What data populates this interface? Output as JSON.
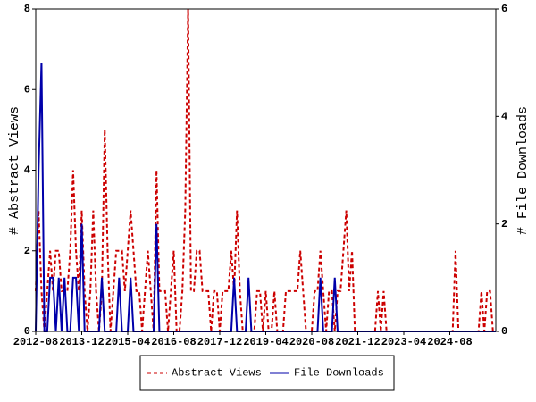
{
  "chart_data": {
    "type": "line",
    "x": [
      "2012-08",
      "2012-09",
      "2012-10",
      "2012-11",
      "2012-12",
      "2013-01",
      "2013-02",
      "2013-03",
      "2013-04",
      "2013-05",
      "2013-06",
      "2013-07",
      "2013-08",
      "2013-09",
      "2013-10",
      "2013-11",
      "2013-12",
      "2014-01",
      "2014-02",
      "2014-03",
      "2014-04",
      "2014-05",
      "2014-06",
      "2014-07",
      "2014-08",
      "2014-09",
      "2014-10",
      "2014-11",
      "2014-12",
      "2015-01",
      "2015-02",
      "2015-03",
      "2015-04",
      "2015-05",
      "2015-06",
      "2015-07",
      "2015-08",
      "2015-09",
      "2015-10",
      "2015-11",
      "2015-12",
      "2016-01",
      "2016-02",
      "2016-03",
      "2016-04",
      "2016-05",
      "2016-06",
      "2016-07",
      "2016-08",
      "2016-09",
      "2016-10",
      "2016-11",
      "2016-12",
      "2017-01",
      "2017-02",
      "2017-03",
      "2017-04",
      "2017-05",
      "2017-06",
      "2017-07",
      "2017-08",
      "2017-09",
      "2017-10",
      "2017-11",
      "2017-12",
      "2018-01",
      "2018-02",
      "2018-03",
      "2018-04",
      "2018-05",
      "2018-06",
      "2018-07",
      "2018-08",
      "2018-09",
      "2018-10",
      "2018-11",
      "2018-12",
      "2019-01",
      "2019-02",
      "2019-03",
      "2019-04",
      "2019-05",
      "2019-06",
      "2019-07",
      "2019-08",
      "2019-09",
      "2019-10",
      "2019-11",
      "2019-12",
      "2020-01",
      "2020-02",
      "2020-03",
      "2020-04",
      "2020-05",
      "2020-06",
      "2020-07",
      "2020-08",
      "2020-09",
      "2020-10",
      "2020-11",
      "2020-12",
      "2021-01",
      "2021-02",
      "2021-03",
      "2021-04",
      "2021-05",
      "2021-06",
      "2021-07",
      "2021-08",
      "2021-09",
      "2021-10",
      "2021-11",
      "2021-12",
      "2022-01",
      "2022-02",
      "2022-03",
      "2022-04",
      "2022-05",
      "2022-06",
      "2022-07",
      "2022-08",
      "2022-09",
      "2022-10",
      "2022-11",
      "2022-12",
      "2023-01",
      "2023-02",
      "2023-03",
      "2023-04",
      "2023-05",
      "2023-06",
      "2023-07",
      "2023-08",
      "2023-09",
      "2023-10",
      "2023-11",
      "2023-12",
      "2024-01",
      "2024-02",
      "2024-03",
      "2024-04",
      "2024-05",
      "2024-06",
      "2024-07",
      "2024-08",
      "2024-09",
      "2024-10",
      "2024-11",
      "2024-12",
      "2025-01",
      "2025-02",
      "2025-03",
      "2025-04",
      "2025-05",
      "2025-06",
      "2025-07",
      "2025-08",
      "2025-09",
      "2025-10",
      "2025-11",
      "2025-12"
    ],
    "xticks": [
      "2012-08",
      "2013-12",
      "2015-04",
      "2016-08",
      "2017-12",
      "2019-04",
      "2020-08",
      "2021-12",
      "2023-04",
      "2024-08"
    ],
    "y_label": "# Abstract Views",
    "y2_label": "# File Downloads",
    "ylim": [
      0,
      8
    ],
    "yticks": [
      0,
      2,
      4,
      6,
      8
    ],
    "y2lim": [
      0,
      6
    ],
    "y2ticks": [
      0,
      2,
      4,
      6
    ],
    "legend": "bottom",
    "series": [
      {
        "name": "Abstract Views",
        "color": "#cc0000",
        "dash": true,
        "axis": "y",
        "values": [
          1,
          3,
          1,
          0,
          1,
          2,
          1,
          2,
          2,
          1,
          1,
          1,
          2,
          4,
          2,
          1,
          3,
          1,
          0,
          1,
          3,
          1,
          0,
          1,
          5,
          2,
          0,
          1,
          2,
          2,
          2,
          1,
          2,
          3,
          2,
          1,
          1,
          0,
          1,
          2,
          1,
          0,
          4,
          1,
          1,
          1,
          0,
          1,
          2,
          0,
          0,
          1,
          3,
          8,
          1,
          1,
          2,
          2,
          1,
          1,
          1,
          0,
          1,
          1,
          0,
          1,
          1,
          1,
          2,
          1,
          3,
          1,
          0,
          0,
          0,
          0,
          0,
          1,
          1,
          0,
          1,
          0,
          0,
          1,
          0,
          0,
          0,
          1,
          1,
          1,
          1,
          1,
          2,
          1,
          0,
          0,
          0,
          1,
          1,
          2,
          1,
          0,
          1,
          1,
          0,
          1,
          1,
          2,
          3,
          1,
          2,
          0,
          0,
          0,
          0,
          0,
          0,
          0,
          0,
          1,
          0,
          1,
          0,
          0,
          0,
          0,
          0,
          0,
          0,
          0,
          0,
          0,
          0,
          0,
          0,
          0,
          0,
          0,
          0,
          0,
          0,
          0,
          0,
          0,
          0,
          0,
          2,
          0,
          0,
          0,
          0,
          0,
          0,
          0,
          0,
          1,
          0,
          1,
          1,
          0,
          0
        ]
      },
      {
        "name": "File Downloads",
        "color": "#0000aa",
        "dash": false,
        "axis": "y2",
        "values": [
          0,
          3,
          5,
          0,
          0,
          1,
          1,
          0,
          1,
          0,
          1,
          0,
          0,
          1,
          1,
          0,
          2,
          0,
          0,
          0,
          0,
          0,
          0,
          1,
          0,
          0,
          0,
          0,
          0,
          1,
          0,
          0,
          0,
          1,
          0,
          0,
          0,
          0,
          0,
          0,
          0,
          0,
          2,
          0,
          0,
          0,
          0,
          0,
          0,
          0,
          0,
          0,
          0,
          0,
          0,
          0,
          0,
          0,
          0,
          0,
          0,
          0,
          0,
          0,
          0,
          0,
          0,
          0,
          0,
          1,
          0,
          0,
          0,
          0,
          1,
          0,
          0,
          0,
          0,
          0,
          0,
          0,
          0,
          0,
          0,
          0,
          0,
          0,
          0,
          0,
          0,
          0,
          0,
          0,
          0,
          0,
          0,
          0,
          0,
          1,
          0,
          0,
          0,
          0,
          1,
          0,
          0,
          0,
          0,
          0,
          0,
          0,
          0,
          0,
          0,
          0,
          0,
          0,
          0,
          0,
          0,
          0,
          0,
          0,
          0,
          0,
          0,
          0,
          0,
          0,
          0,
          0,
          0,
          0,
          0,
          0,
          0,
          0,
          0,
          0,
          0,
          0,
          0,
          0,
          0,
          0,
          0,
          0,
          0,
          0,
          0,
          0,
          0,
          0,
          0,
          0,
          0,
          0,
          0,
          0,
          0
        ]
      }
    ]
  }
}
